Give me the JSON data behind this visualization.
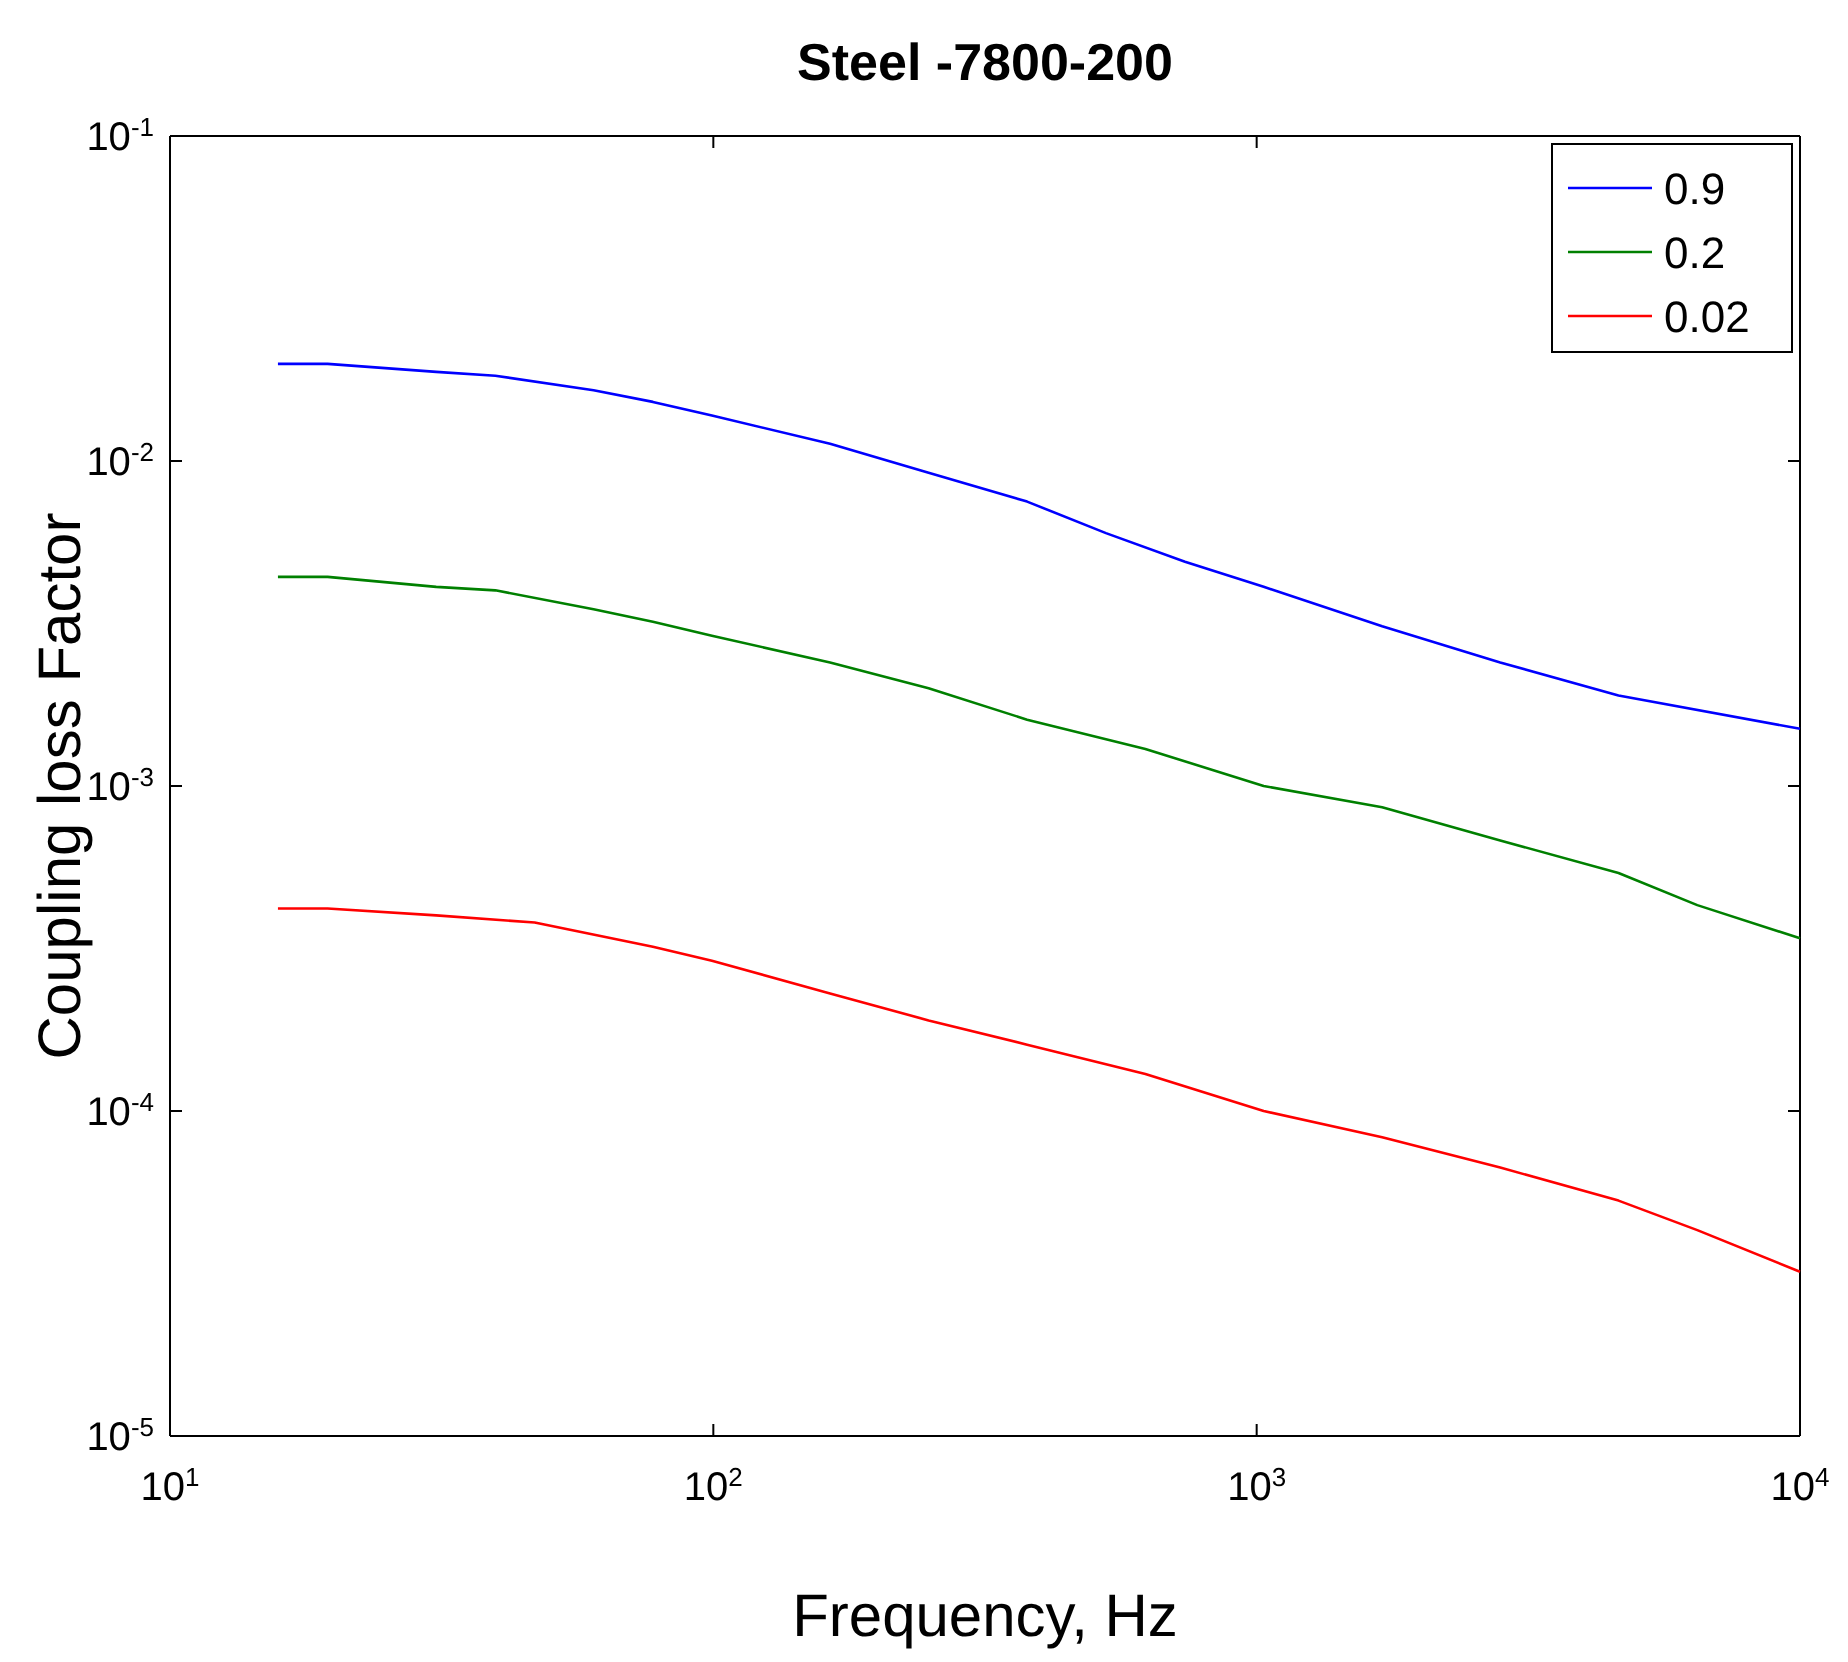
{
  "chart_data": {
    "type": "line",
    "title": "Steel -7800-200",
    "xlabel": "Frequency, Hz",
    "ylabel": "Coupling loss Factor",
    "log": "xy",
    "grid": false,
    "legend": "top right",
    "line_style": "solid",
    "marker": "none",
    "xlim": [
      10,
      10000
    ],
    "ylim": [
      1e-05,
      0.1
    ],
    "xticks": [
      {
        "value": 10,
        "label": "10$^{1}$"
      },
      {
        "value": 100,
        "label": "10$^{2}$"
      },
      {
        "value": 1000,
        "label": "10$^{3}$"
      },
      {
        "value": 10000,
        "label": "10$^{4}$"
      }
    ],
    "yticks": [
      {
        "value": 1e-05,
        "label": "10$^{-5}$"
      },
      {
        "value": 0.0001,
        "label": "10$^{-4}$"
      },
      {
        "value": 0.001,
        "label": "10$^{-3}$"
      },
      {
        "value": 0.01,
        "label": "10$^{-2}$"
      },
      {
        "value": 0.1,
        "label": "10$^{-1}$"
      }
    ],
    "series": [
      {
        "name": "0.9",
        "color": "#0000ff",
        "x": [
          15.8,
          19.5,
          30.9,
          39.7,
          60.2,
          77.4,
          99.4,
          164,
          249,
          378,
          528,
          738,
          1030,
          1702,
          2807,
          4634,
          10000
        ],
        "values": [
          0.0199,
          0.0199,
          0.0188,
          0.0183,
          0.0165,
          0.0152,
          0.0138,
          0.0113,
          0.0092,
          0.0075,
          0.006,
          0.0049,
          0.0041,
          0.0031,
          0.0024,
          0.0019,
          0.0015
        ]
      },
      {
        "name": "0.2",
        "color": "#008000",
        "x": [
          15.8,
          19.5,
          30.9,
          39.7,
          60.2,
          77.4,
          99.4,
          164,
          249,
          378,
          624,
          1030,
          1702,
          2807,
          4634,
          6471,
          10000
        ],
        "values": [
          0.0044,
          0.0044,
          0.0041,
          0.004,
          0.0035,
          0.0032,
          0.0029,
          0.0024,
          0.002,
          0.0016,
          0.0013,
          0.001,
          0.00086,
          0.00068,
          0.00054,
          0.00043,
          0.00034
        ]
      },
      {
        "name": "0.02",
        "color": "#ff0000",
        "x": [
          15.8,
          19.5,
          30.9,
          46.9,
          77.4,
          99.4,
          164,
          249,
          378,
          624,
          1030,
          1702,
          2807,
          4634,
          6471,
          10000
        ],
        "values": [
          0.00042,
          0.00042,
          0.0004,
          0.00038,
          0.00032,
          0.00029,
          0.00023,
          0.00019,
          0.00016,
          0.00013,
          0.0001,
          8.3e-05,
          6.7e-05,
          5.3e-05,
          4.3e-05,
          3.2e-05
        ]
      }
    ]
  }
}
